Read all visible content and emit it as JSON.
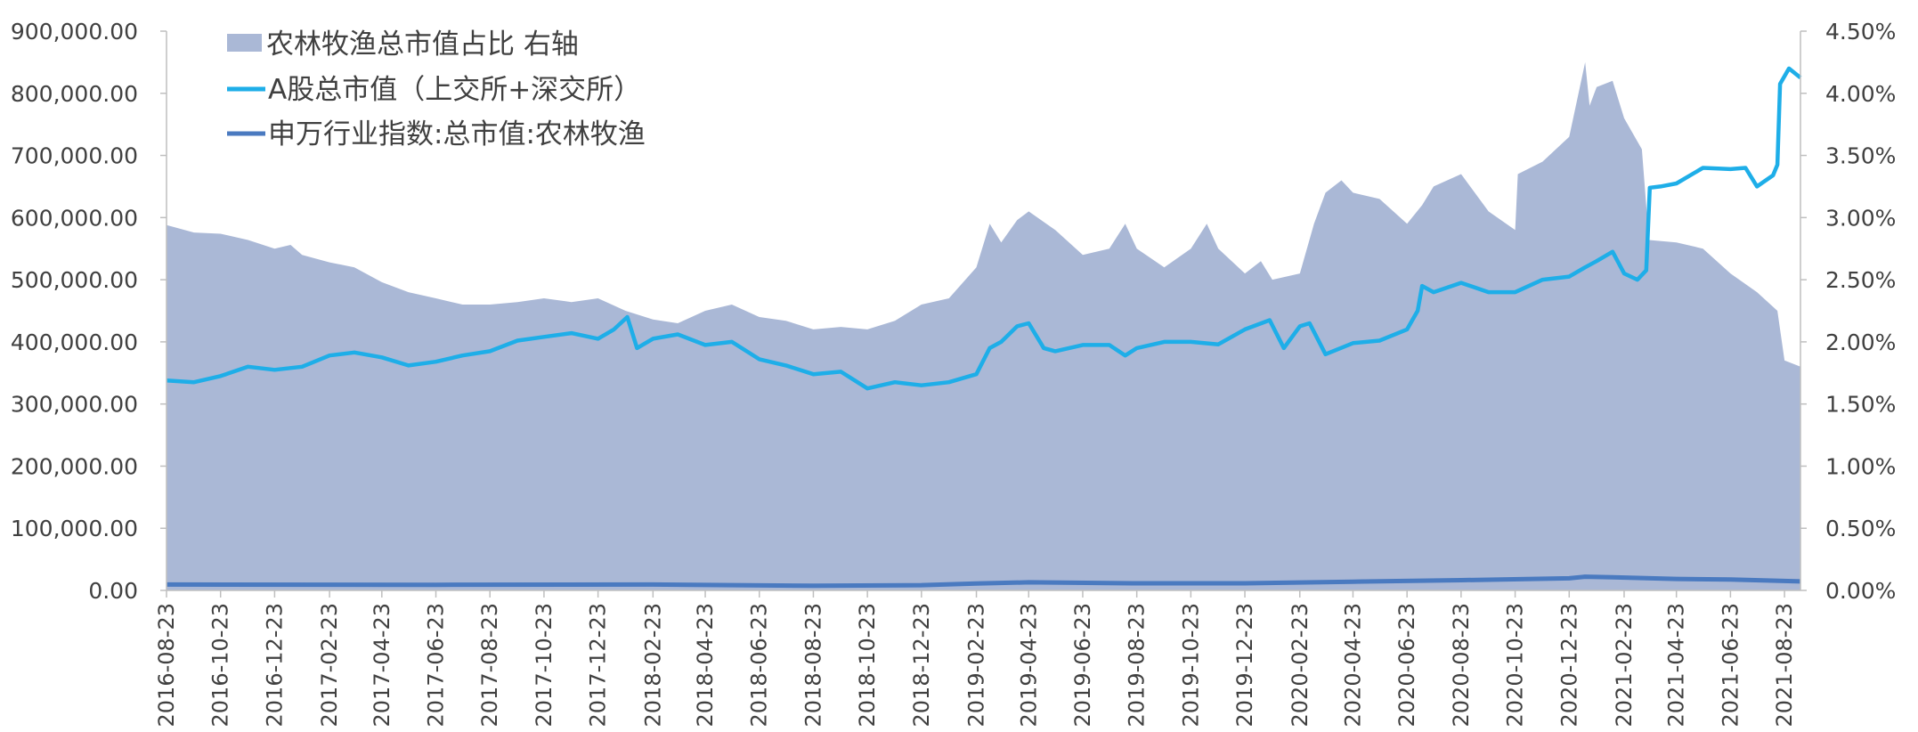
{
  "chart_data": {
    "type": "area+line",
    "title": "",
    "xlabel": "",
    "ylabel_left": "",
    "ylabel_right": "",
    "grid": false,
    "legend_placement": "top-left",
    "colors": {
      "area": "#aab8d6",
      "line_a": "#1eaee8",
      "line_sw": "#4a7ac0",
      "axis": "#bfbfbf",
      "text": "#404040"
    },
    "y_left": {
      "min": 0,
      "max": 900000,
      "ticks": [
        {
          "value": 0,
          "label": "0.00"
        },
        {
          "value": 100000,
          "label": "100,000.00"
        },
        {
          "value": 200000,
          "label": "200,000.00"
        },
        {
          "value": 300000,
          "label": "300,000.00"
        },
        {
          "value": 400000,
          "label": "400,000.00"
        },
        {
          "value": 500000,
          "label": "500,000.00"
        },
        {
          "value": 600000,
          "label": "600,000.00"
        },
        {
          "value": 700000,
          "label": "700,000.00"
        },
        {
          "value": 800000,
          "label": "800,000.00"
        },
        {
          "value": 900000,
          "label": "900,000.00"
        }
      ]
    },
    "y_right": {
      "min": 0,
      "max": 4.5,
      "unit": "%",
      "ticks": [
        {
          "value": 0,
          "label": "0.00%"
        },
        {
          "value": 0.5,
          "label": "0.50%"
        },
        {
          "value": 1.0,
          "label": "1.00%"
        },
        {
          "value": 1.5,
          "label": "1.50%"
        },
        {
          "value": 2.0,
          "label": "2.00%"
        },
        {
          "value": 2.5,
          "label": "2.50%"
        },
        {
          "value": 3.0,
          "label": "3.00%"
        },
        {
          "value": 3.5,
          "label": "3.50%"
        },
        {
          "value": 4.0,
          "label": "4.00%"
        },
        {
          "value": 4.5,
          "label": "4.50%"
        }
      ]
    },
    "x_ticks": [
      "2016-08-23",
      "2016-10-23",
      "2016-12-23",
      "2017-02-23",
      "2017-04-23",
      "2017-06-23",
      "2017-08-23",
      "2017-10-23",
      "2017-12-23",
      "2018-02-23",
      "2018-04-23",
      "2018-06-23",
      "2018-08-23",
      "2018-10-23",
      "2018-12-23",
      "2019-02-23",
      "2019-04-23",
      "2019-06-23",
      "2019-08-23",
      "2019-10-23",
      "2019-12-23",
      "2020-02-23",
      "2020-04-23",
      "2020-06-23",
      "2020-08-23",
      "2020-10-23",
      "2020-12-23",
      "2021-02-23",
      "2021-04-23",
      "2021-06-23",
      "2021-08-23"
    ],
    "series": [
      {
        "name": "农林牧渔总市值占比 右轴",
        "kind": "area",
        "axis": "right",
        "points": [
          [
            "2016-08-23",
            2.94
          ],
          [
            "2016-09-23",
            2.88
          ],
          [
            "2016-10-23",
            2.87
          ],
          [
            "2016-11-23",
            2.82
          ],
          [
            "2016-12-23",
            2.75
          ],
          [
            "2017-01-10",
            2.78
          ],
          [
            "2017-01-23",
            2.7
          ],
          [
            "2017-02-23",
            2.64
          ],
          [
            "2017-03-23",
            2.6
          ],
          [
            "2017-04-23",
            2.48
          ],
          [
            "2017-05-23",
            2.4
          ],
          [
            "2017-06-23",
            2.35
          ],
          [
            "2017-07-23",
            2.3
          ],
          [
            "2017-08-23",
            2.3
          ],
          [
            "2017-09-23",
            2.32
          ],
          [
            "2017-10-23",
            2.35
          ],
          [
            "2017-11-23",
            2.32
          ],
          [
            "2017-12-23",
            2.35
          ],
          [
            "2018-01-23",
            2.25
          ],
          [
            "2018-02-23",
            2.18
          ],
          [
            "2018-03-23",
            2.15
          ],
          [
            "2018-04-23",
            2.25
          ],
          [
            "2018-05-23",
            2.3
          ],
          [
            "2018-06-23",
            2.2
          ],
          [
            "2018-07-23",
            2.17
          ],
          [
            "2018-08-23",
            2.1
          ],
          [
            "2018-09-23",
            2.12
          ],
          [
            "2018-10-23",
            2.1
          ],
          [
            "2018-11-23",
            2.17
          ],
          [
            "2018-12-23",
            2.3
          ],
          [
            "2019-01-23",
            2.35
          ],
          [
            "2019-02-23",
            2.6
          ],
          [
            "2019-03-10",
            2.95
          ],
          [
            "2019-03-23",
            2.8
          ],
          [
            "2019-04-10",
            2.98
          ],
          [
            "2019-04-23",
            3.05
          ],
          [
            "2019-05-23",
            2.9
          ],
          [
            "2019-06-23",
            2.7
          ],
          [
            "2019-07-23",
            2.75
          ],
          [
            "2019-08-10",
            2.95
          ],
          [
            "2019-08-23",
            2.75
          ],
          [
            "2019-09-23",
            2.6
          ],
          [
            "2019-10-23",
            2.75
          ],
          [
            "2019-11-10",
            2.95
          ],
          [
            "2019-11-23",
            2.75
          ],
          [
            "2019-12-23",
            2.55
          ],
          [
            "2020-01-10",
            2.65
          ],
          [
            "2020-01-23",
            2.5
          ],
          [
            "2020-02-23",
            2.55
          ],
          [
            "2020-03-10",
            2.95
          ],
          [
            "2020-03-23",
            3.2
          ],
          [
            "2020-04-10",
            3.3
          ],
          [
            "2020-04-23",
            3.2
          ],
          [
            "2020-05-23",
            3.15
          ],
          [
            "2020-06-23",
            2.95
          ],
          [
            "2020-07-10",
            3.1
          ],
          [
            "2020-07-23",
            3.25
          ],
          [
            "2020-08-23",
            3.35
          ],
          [
            "2020-09-23",
            3.05
          ],
          [
            "2020-10-23",
            2.9
          ],
          [
            "2020-10-26",
            3.35
          ],
          [
            "2020-11-23",
            3.45
          ],
          [
            "2020-12-23",
            3.65
          ],
          [
            "2021-01-10",
            4.25
          ],
          [
            "2021-01-15",
            3.9
          ],
          [
            "2021-01-23",
            4.05
          ],
          [
            "2021-02-10",
            4.1
          ],
          [
            "2021-02-23",
            3.8
          ],
          [
            "2021-03-15",
            3.55
          ],
          [
            "2021-03-23",
            2.82
          ],
          [
            "2021-04-23",
            2.8
          ],
          [
            "2021-05-23",
            2.75
          ],
          [
            "2021-06-23",
            2.55
          ],
          [
            "2021-07-23",
            2.4
          ],
          [
            "2021-08-15",
            2.25
          ],
          [
            "2021-08-23",
            1.85
          ],
          [
            "2021-09-10",
            1.8
          ]
        ]
      },
      {
        "name": "A股总市值（上交所+深交所）",
        "kind": "line",
        "axis": "left",
        "points": [
          [
            "2016-08-23",
            338000
          ],
          [
            "2016-09-23",
            335000
          ],
          [
            "2016-10-23",
            345000
          ],
          [
            "2016-11-23",
            360000
          ],
          [
            "2016-12-23",
            355000
          ],
          [
            "2017-01-23",
            360000
          ],
          [
            "2017-02-23",
            378000
          ],
          [
            "2017-03-23",
            383000
          ],
          [
            "2017-04-23",
            375000
          ],
          [
            "2017-05-23",
            362000
          ],
          [
            "2017-06-23",
            368000
          ],
          [
            "2017-07-23",
            378000
          ],
          [
            "2017-08-23",
            385000
          ],
          [
            "2017-09-23",
            402000
          ],
          [
            "2017-10-23",
            408000
          ],
          [
            "2017-11-23",
            414000
          ],
          [
            "2017-12-23",
            405000
          ],
          [
            "2018-01-10",
            420000
          ],
          [
            "2018-01-25",
            440000
          ],
          [
            "2018-02-05",
            390000
          ],
          [
            "2018-02-23",
            405000
          ],
          [
            "2018-03-23",
            412000
          ],
          [
            "2018-04-23",
            395000
          ],
          [
            "2018-05-23",
            400000
          ],
          [
            "2018-06-23",
            372000
          ],
          [
            "2018-07-23",
            362000
          ],
          [
            "2018-08-23",
            348000
          ],
          [
            "2018-09-23",
            352000
          ],
          [
            "2018-10-23",
            325000
          ],
          [
            "2018-11-23",
            335000
          ],
          [
            "2018-12-23",
            330000
          ],
          [
            "2019-01-23",
            335000
          ],
          [
            "2019-02-23",
            348000
          ],
          [
            "2019-03-10",
            390000
          ],
          [
            "2019-03-23",
            400000
          ],
          [
            "2019-04-10",
            425000
          ],
          [
            "2019-04-23",
            430000
          ],
          [
            "2019-05-10",
            390000
          ],
          [
            "2019-05-23",
            385000
          ],
          [
            "2019-06-23",
            395000
          ],
          [
            "2019-07-23",
            395000
          ],
          [
            "2019-08-10",
            378000
          ],
          [
            "2019-08-23",
            390000
          ],
          [
            "2019-09-23",
            400000
          ],
          [
            "2019-10-23",
            400000
          ],
          [
            "2019-11-23",
            396000
          ],
          [
            "2019-12-23",
            420000
          ],
          [
            "2020-01-20",
            435000
          ],
          [
            "2020-02-05",
            390000
          ],
          [
            "2020-02-23",
            425000
          ],
          [
            "2020-03-05",
            430000
          ],
          [
            "2020-03-23",
            380000
          ],
          [
            "2020-04-23",
            398000
          ],
          [
            "2020-05-23",
            402000
          ],
          [
            "2020-06-23",
            420000
          ],
          [
            "2020-07-05",
            450000
          ],
          [
            "2020-07-10",
            490000
          ],
          [
            "2020-07-23",
            480000
          ],
          [
            "2020-08-23",
            495000
          ],
          [
            "2020-09-23",
            480000
          ],
          [
            "2020-10-23",
            480000
          ],
          [
            "2020-11-23",
            500000
          ],
          [
            "2020-12-23",
            505000
          ],
          [
            "2021-01-10",
            520000
          ],
          [
            "2021-01-23",
            530000
          ],
          [
            "2021-02-10",
            545000
          ],
          [
            "2021-02-23",
            510000
          ],
          [
            "2021-03-10",
            500000
          ],
          [
            "2021-03-20",
            515000
          ],
          [
            "2021-03-24",
            648000
          ],
          [
            "2021-04-05",
            650000
          ],
          [
            "2021-04-23",
            655000
          ],
          [
            "2021-05-23",
            680000
          ],
          [
            "2021-06-23",
            678000
          ],
          [
            "2021-07-10",
            680000
          ],
          [
            "2021-07-23",
            650000
          ],
          [
            "2021-08-10",
            668000
          ],
          [
            "2021-08-15",
            685000
          ],
          [
            "2021-08-18",
            815000
          ],
          [
            "2021-08-28",
            840000
          ],
          [
            "2021-09-10",
            825000
          ]
        ]
      },
      {
        "name": "申万行业指数:总市值:农林牧渔",
        "kind": "line",
        "axis": "left",
        "points": [
          [
            "2016-08-23",
            9500
          ],
          [
            "2017-06-23",
            9000
          ],
          [
            "2018-02-23",
            9500
          ],
          [
            "2018-08-23",
            7500
          ],
          [
            "2018-12-23",
            8500
          ],
          [
            "2019-02-23",
            11000
          ],
          [
            "2019-04-23",
            13000
          ],
          [
            "2019-08-23",
            11500
          ],
          [
            "2019-12-23",
            11500
          ],
          [
            "2020-04-23",
            14000
          ],
          [
            "2020-08-23",
            16500
          ],
          [
            "2020-12-23",
            19500
          ],
          [
            "2021-01-10",
            22000
          ],
          [
            "2021-02-10",
            21000
          ],
          [
            "2021-04-23",
            18500
          ],
          [
            "2021-06-23",
            17500
          ],
          [
            "2021-09-10",
            14500
          ]
        ]
      }
    ]
  }
}
